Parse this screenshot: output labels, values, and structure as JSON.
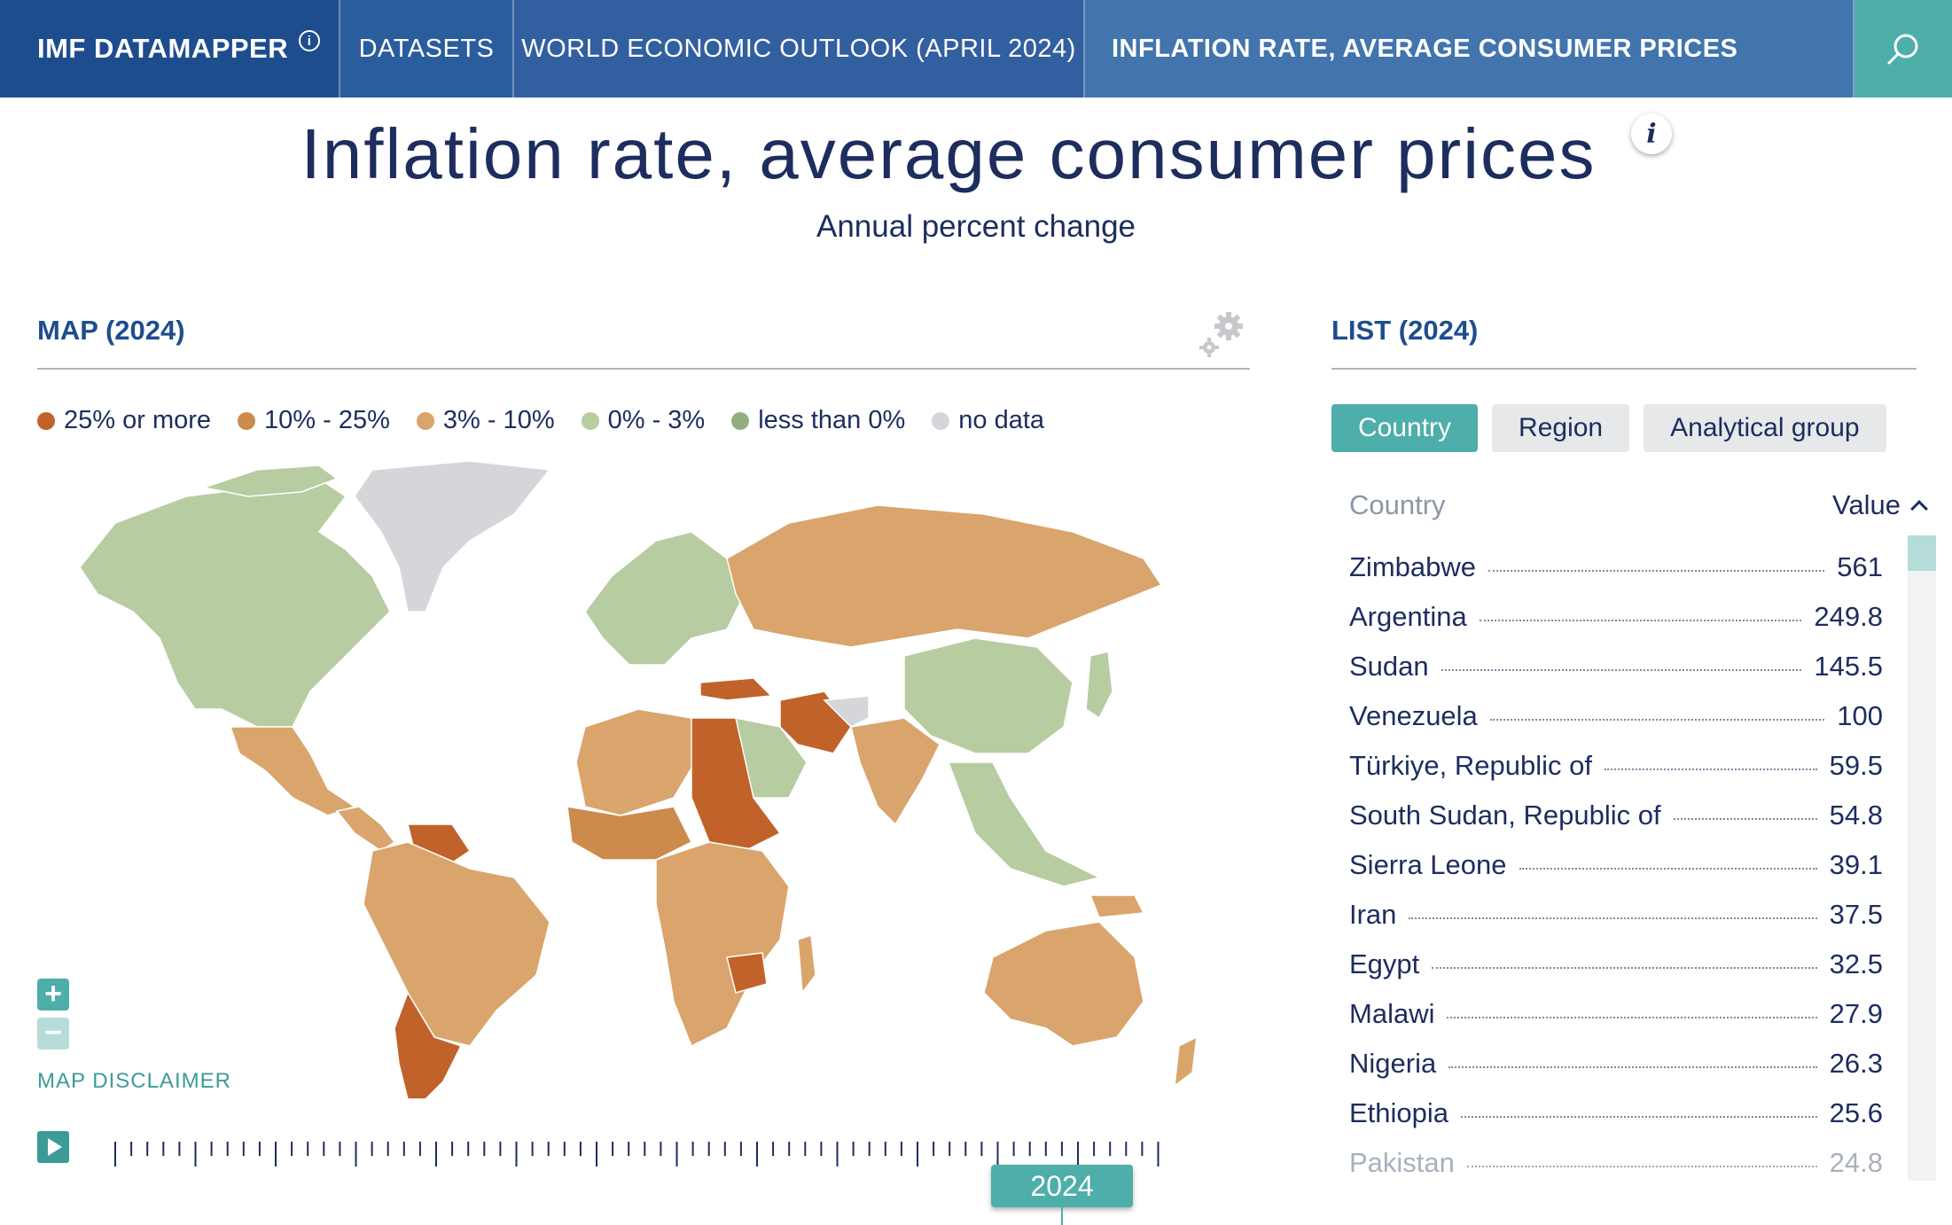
{
  "nav": {
    "brand": "IMF DATAMAPPER",
    "brand_info_glyph": "i",
    "datasets": "DATASETS",
    "weo": "WORLD ECONOMIC OUTLOOK (APRIL 2024)",
    "indicator": "INFLATION RATE, AVERAGE CONSUMER PRICES",
    "search_icon": "search-icon"
  },
  "title": "Inflation rate, average consumer prices",
  "info_glyph": "i",
  "subtitle": "Annual percent change",
  "map": {
    "heading": "MAP (2024)",
    "legend": [
      {
        "label": "25% or more",
        "color": "#c0622a"
      },
      {
        "label": "10% - 25%",
        "color": "#cc8a4c"
      },
      {
        "label": "3% - 10%",
        "color": "#d9a56c"
      },
      {
        "label": "0% - 3%",
        "color": "#b7cca1"
      },
      {
        "label": "less than 0%",
        "color": "#93ad7f"
      },
      {
        "label": "no data",
        "color": "#d4d6d9"
      }
    ],
    "zoom_in": "+",
    "zoom_out": "−",
    "disclaimer": "MAP DISCLAIMER",
    "year": "2024"
  },
  "list": {
    "heading": "LIST (2024)",
    "tabs": [
      "Country",
      "Region",
      "Analytical group"
    ],
    "active_tab": "Country",
    "col_country": "Country",
    "col_value": "Value",
    "rows": [
      {
        "name": "Zimbabwe",
        "value": "561"
      },
      {
        "name": "Argentina",
        "value": "249.8"
      },
      {
        "name": "Sudan",
        "value": "145.5"
      },
      {
        "name": "Venezuela",
        "value": "100"
      },
      {
        "name": "Türkiye, Republic of",
        "value": "59.5"
      },
      {
        "name": "South Sudan, Republic of",
        "value": "54.8"
      },
      {
        "name": "Sierra Leone",
        "value": "39.1"
      },
      {
        "name": "Iran",
        "value": "37.5"
      },
      {
        "name": "Egypt",
        "value": "32.5"
      },
      {
        "name": "Malawi",
        "value": "27.9"
      },
      {
        "name": "Nigeria",
        "value": "26.3"
      },
      {
        "name": "Ethiopia",
        "value": "25.6"
      },
      {
        "name": "Pakistan",
        "value": "24.8"
      }
    ]
  },
  "colors": {
    "accent": "#4eaea9",
    "brand": "#1e4d8e",
    "text": "#1c2d5e"
  }
}
